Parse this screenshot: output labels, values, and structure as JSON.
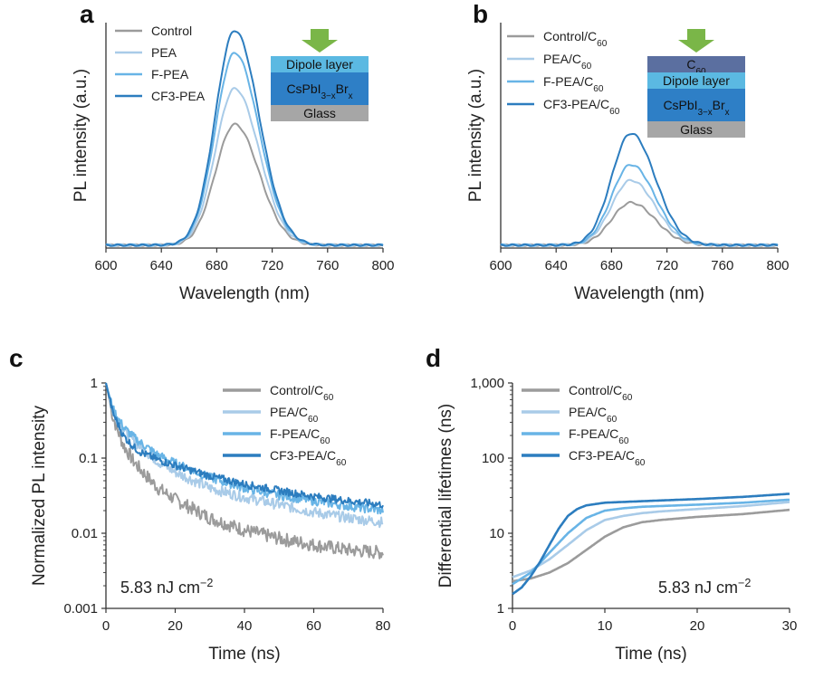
{
  "figure": {
    "colors": {
      "control": "#9b9b9b",
      "pea": "#a9cbe8",
      "fpea": "#68b4e6",
      "cf3pea": "#2c7dbf",
      "arrow": "#7ab648",
      "glass": "#a6a6a6",
      "perovskite": "#2e7fc6",
      "dipole": "#5bb9e2",
      "c60": "#5b6fa0"
    }
  },
  "chart_data": [
    {
      "id": "a",
      "panel_label": "a",
      "type": "line",
      "title": "",
      "xlabel": "Wavelength (nm)",
      "ylabel": "PL intensity (a.u.)",
      "xlim": [
        600,
        800
      ],
      "ylim": [
        0,
        1
      ],
      "xticks": [
        600,
        640,
        680,
        720,
        760,
        800
      ],
      "xtick_labels": [
        "600",
        "640",
        "680",
        "720",
        "760",
        "800"
      ],
      "yticks": [],
      "yscale": "linear",
      "legend_position": "top-left",
      "peak_center": 693,
      "series": [
        {
          "name": "Control",
          "color_key": "control",
          "peak": 0.54
        },
        {
          "name": "PEA",
          "color_key": "pea",
          "peak": 0.7
        },
        {
          "name": "F-PEA",
          "color_key": "fpea",
          "peak": 0.86
        },
        {
          "name": "CF3-PEA",
          "color_key": "cf3pea",
          "peak": 0.96
        }
      ],
      "inset": {
        "arrow": true,
        "layers": [
          {
            "label": "Dipole layer",
            "color_key": "dipole"
          },
          {
            "label": "CsPbI3−xBrx",
            "color_key": "perovskite",
            "formula": true
          },
          {
            "label": "Glass",
            "color_key": "glass"
          }
        ]
      }
    },
    {
      "id": "b",
      "panel_label": "b",
      "type": "line",
      "title": "",
      "xlabel": "Wavelength (nm)",
      "ylabel": "PL intensity (a.u.)",
      "xlim": [
        600,
        800
      ],
      "ylim": [
        0,
        1
      ],
      "xticks": [
        600,
        640,
        680,
        720,
        760,
        800
      ],
      "xtick_labels": [
        "600",
        "640",
        "680",
        "720",
        "760",
        "800"
      ],
      "yticks": [],
      "yscale": "linear",
      "legend_position": "top-left",
      "peak_center": 694,
      "series": [
        {
          "name": "Control/C60",
          "color_key": "control",
          "peak": 0.19
        },
        {
          "name": "PEA/C60",
          "color_key": "pea",
          "peak": 0.29
        },
        {
          "name": "F-PEA/C60",
          "color_key": "fpea",
          "peak": 0.36
        },
        {
          "name": "CF3-PEA/C60",
          "color_key": "cf3pea",
          "peak": 0.5
        }
      ],
      "inset": {
        "arrow": true,
        "layers": [
          {
            "label": "C60",
            "color_key": "c60",
            "sub60": true
          },
          {
            "label": "Dipole layer",
            "color_key": "dipole"
          },
          {
            "label": "CsPbI3−xBrx",
            "color_key": "perovskite",
            "formula": true
          },
          {
            "label": "Glass",
            "color_key": "glass"
          }
        ]
      }
    },
    {
      "id": "c",
      "panel_label": "c",
      "type": "line",
      "title": "",
      "xlabel": "Time (ns)",
      "ylabel": "Normalized PL intensity",
      "xlim": [
        0,
        80
      ],
      "ylim": [
        0.001,
        1
      ],
      "yscale": "log",
      "xticks": [
        0,
        20,
        40,
        60,
        80
      ],
      "xtick_labels": [
        "0",
        "20",
        "40",
        "60",
        "80"
      ],
      "yticks": [
        0.001,
        0.01,
        0.1,
        1
      ],
      "ytick_labels": [
        "0.001",
        "0.01",
        "0.1",
        "1"
      ],
      "legend_position": "top-right",
      "annotation": "5.83 nJ cm−2",
      "annotation_base": "5.83 nJ cm",
      "annotation_sup": "−2",
      "series": [
        {
          "name": "Control/C60",
          "color_key": "control",
          "x": [
            0,
            2,
            5,
            8,
            10,
            15,
            20,
            30,
            40,
            50,
            60,
            70,
            80
          ],
          "y": [
            1,
            0.35,
            0.15,
            0.09,
            0.07,
            0.04,
            0.028,
            0.016,
            0.011,
            0.0085,
            0.007,
            0.006,
            0.0055
          ],
          "noise": 0.09
        },
        {
          "name": "PEA/C60",
          "color_key": "pea",
          "x": [
            0,
            2,
            5,
            8,
            10,
            15,
            20,
            30,
            40,
            50,
            60,
            70,
            80
          ],
          "y": [
            1,
            0.42,
            0.24,
            0.17,
            0.14,
            0.09,
            0.065,
            0.04,
            0.03,
            0.024,
            0.019,
            0.016,
            0.014
          ],
          "noise": 0.07
        },
        {
          "name": "F-PEA/C60",
          "color_key": "fpea",
          "x": [
            0,
            2,
            5,
            8,
            10,
            15,
            20,
            30,
            40,
            50,
            60,
            70,
            80
          ],
          "y": [
            1,
            0.45,
            0.26,
            0.19,
            0.16,
            0.11,
            0.085,
            0.055,
            0.04,
            0.032,
            0.027,
            0.023,
            0.02
          ],
          "noise": 0.06
        },
        {
          "name": "CF3-PEA/C60",
          "color_key": "cf3pea",
          "x": [
            0,
            2,
            5,
            8,
            10,
            15,
            20,
            30,
            40,
            50,
            60,
            70,
            80
          ],
          "y": [
            1,
            0.4,
            0.2,
            0.14,
            0.12,
            0.095,
            0.08,
            0.058,
            0.045,
            0.037,
            0.031,
            0.027,
            0.024
          ],
          "noise": 0.05
        }
      ]
    },
    {
      "id": "d",
      "panel_label": "d",
      "type": "line",
      "title": "",
      "xlabel": "Time (ns)",
      "ylabel": "Differential lifetimes (ns)",
      "xlim": [
        0,
        30
      ],
      "ylim": [
        1,
        1000
      ],
      "yscale": "log",
      "xticks": [
        0,
        10,
        20,
        30
      ],
      "xtick_labels": [
        "0",
        "10",
        "20",
        "30"
      ],
      "yticks": [
        1,
        10,
        100,
        1000
      ],
      "ytick_labels": [
        "1",
        "10",
        "100",
        "1,000"
      ],
      "legend_position": "top-left",
      "annotation": "5.83 nJ cm−2",
      "annotation_base": "5.83 nJ cm",
      "annotation_sup": "−2",
      "series": [
        {
          "name": "Control/C60",
          "color_key": "control",
          "x": [
            0,
            2,
            4,
            6,
            8,
            10,
            12,
            14,
            16,
            20,
            25,
            30
          ],
          "y": [
            2.3,
            2.5,
            3.0,
            4.0,
            6.0,
            9.0,
            12.0,
            14.0,
            15.0,
            16.5,
            18.0,
            20.5
          ]
        },
        {
          "name": "PEA/C60",
          "color_key": "pea",
          "x": [
            0,
            2,
            4,
            6,
            8,
            10,
            12,
            14,
            16,
            20,
            25,
            30
          ],
          "y": [
            2.6,
            3.2,
            4.5,
            7.0,
            11.0,
            15.0,
            17.0,
            18.5,
            19.5,
            21.0,
            23.0,
            26.0
          ]
        },
        {
          "name": "F-PEA/C60",
          "color_key": "fpea",
          "x": [
            0,
            2,
            4,
            6,
            8,
            10,
            12,
            14,
            16,
            20,
            25,
            30
          ],
          "y": [
            2.1,
            3.0,
            5.5,
            10.0,
            16.0,
            20.0,
            21.5,
            22.5,
            23.0,
            24.0,
            25.5,
            28.0
          ]
        },
        {
          "name": "CF3-PEA/C60",
          "color_key": "cf3pea",
          "x": [
            0,
            1,
            2,
            3,
            4,
            5,
            6,
            7,
            8,
            10,
            15,
            20,
            25,
            30
          ],
          "y": [
            1.55,
            1.9,
            2.7,
            4.2,
            7.0,
            11.5,
            17.0,
            21.0,
            23.5,
            25.5,
            27.0,
            28.5,
            30.5,
            33.5
          ]
        }
      ]
    }
  ]
}
